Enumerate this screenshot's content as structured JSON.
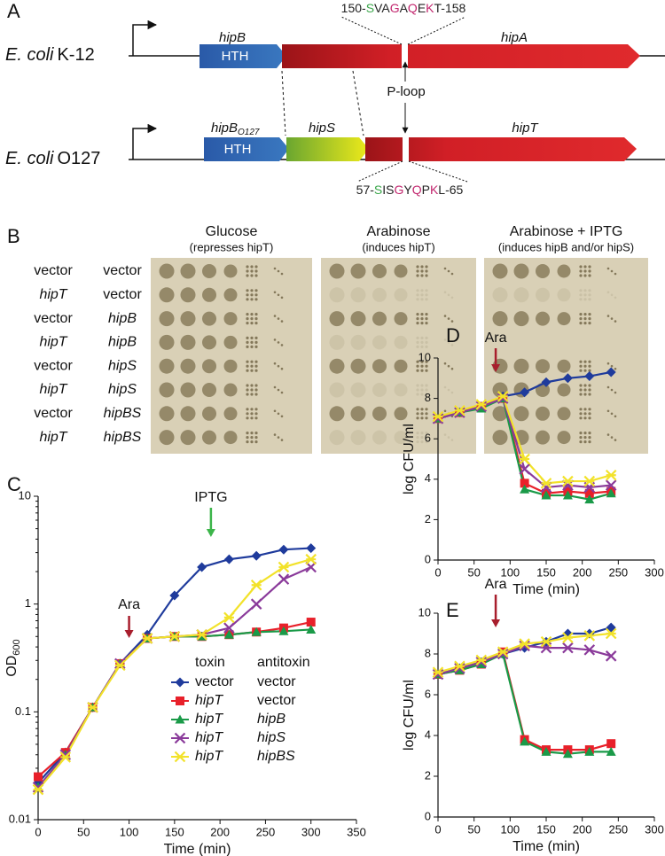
{
  "panel_a": {
    "label": "A",
    "k12": {
      "organism": "E. coli",
      "strain": "K-12",
      "gene_b": "hipB",
      "gene_a": "hipA",
      "domain": "HTH",
      "motif": [
        {
          "text": "150-",
          "color": "#222222"
        },
        {
          "text": "S",
          "color": "#3aa64a"
        },
        {
          "text": "VA",
          "color": "#222222"
        },
        {
          "text": "G",
          "color": "#c2266e"
        },
        {
          "text": "A",
          "color": "#222222"
        },
        {
          "text": "Q",
          "color": "#c2266e"
        },
        {
          "text": "E",
          "color": "#222222"
        },
        {
          "text": "K",
          "color": "#c2266e"
        },
        {
          "text": "T-158",
          "color": "#222222"
        }
      ]
    },
    "o127": {
      "organism": "E. coli",
      "strain": "O127",
      "gene_b": "hipB",
      "gene_b_sub": "O127",
      "gene_s": "hipS",
      "gene_t": "hipT",
      "domain": "HTH",
      "motif": [
        {
          "text": "57-",
          "color": "#222222"
        },
        {
          "text": "S",
          "color": "#3aa64a"
        },
        {
          "text": "IS",
          "color": "#222222"
        },
        {
          "text": "G",
          "color": "#c2266e"
        },
        {
          "text": "Y",
          "color": "#222222"
        },
        {
          "text": "Q",
          "color": "#c2266e"
        },
        {
          "text": "P",
          "color": "#222222"
        },
        {
          "text": "K",
          "color": "#c2266e"
        },
        {
          "text": "L-65",
          "color": "#222222"
        }
      ]
    },
    "loop_label": "P-loop"
  },
  "panel_b": {
    "label": "B",
    "plates": [
      {
        "title": "Glucose",
        "subtitle": "(represses hipT)"
      },
      {
        "title": "Arabinose",
        "subtitle": "(induces hipT)"
      },
      {
        "title": "Arabinose + IPTG",
        "subtitle": "(induces hipB and/or hipS)"
      }
    ],
    "toxin": [
      "vector",
      "hipT",
      "vector",
      "hipT",
      "vector",
      "hipT",
      "vector",
      "hipT"
    ],
    "antitoxin": [
      "vector",
      "vector",
      "hipB",
      "hipB",
      "hipS",
      "hipS",
      "hipBS",
      "hipBS"
    ]
  },
  "chart_data": [
    {
      "type": "line",
      "panel_label": "C",
      "log_y": true,
      "x": [
        0,
        30,
        60,
        90,
        120,
        150,
        180,
        210,
        240,
        270,
        300
      ],
      "xlim": [
        0,
        350
      ],
      "xticks": [
        0,
        50,
        100,
        150,
        200,
        250,
        300,
        350
      ],
      "ylim": [
        0.01,
        10
      ],
      "yticks": [
        0.01,
        0.1,
        1,
        10
      ],
      "x_label": "Time (min)",
      "y_label": "OD",
      "y_label_sub": "600",
      "legend_headers": [
        "toxin",
        "antitoxin"
      ],
      "series": [
        {
          "name": "vector",
          "antitoxin": "vector",
          "color": "#1f3b9c",
          "marker": "diamond",
          "values": [
            0.022,
            0.042,
            0.11,
            0.28,
            0.52,
            1.2,
            2.2,
            2.6,
            2.8,
            3.2,
            3.3
          ]
        },
        {
          "name": "hipT",
          "antitoxin": "vector",
          "color": "#e8202a",
          "marker": "square",
          "values": [
            0.025,
            0.042,
            0.11,
            0.28,
            0.48,
            0.5,
            0.5,
            0.52,
            0.55,
            0.6,
            0.68
          ]
        },
        {
          "name": "hipT",
          "antitoxin": "hipB",
          "color": "#1a9a48",
          "marker": "triangle",
          "values": [
            0.02,
            0.04,
            0.11,
            0.28,
            0.48,
            0.5,
            0.5,
            0.52,
            0.55,
            0.56,
            0.58
          ]
        },
        {
          "name": "hipT",
          "antitoxin": "hipS",
          "color": "#8a3a9a",
          "marker": "cross",
          "values": [
            0.02,
            0.04,
            0.11,
            0.28,
            0.48,
            0.5,
            0.52,
            0.6,
            1.0,
            1.7,
            2.2
          ]
        },
        {
          "name": "hipT",
          "antitoxin": "hipBS",
          "color": "#f2e22a",
          "marker": "star",
          "values": [
            0.019,
            0.038,
            0.11,
            0.27,
            0.48,
            0.5,
            0.52,
            0.75,
            1.5,
            2.2,
            2.6
          ]
        }
      ],
      "annotations": [
        {
          "text": "Ara",
          "x": 100,
          "color": "#a81e2d"
        },
        {
          "text": "IPTG",
          "x": 190,
          "color": "#3cb54a"
        }
      ]
    },
    {
      "type": "line",
      "panel_label": "D",
      "x": [
        0,
        30,
        60,
        90,
        120,
        150,
        180,
        210,
        240
      ],
      "xlim": [
        0,
        300
      ],
      "xticks": [
        0,
        50,
        100,
        150,
        200,
        250,
        300
      ],
      "ylim": [
        0,
        10
      ],
      "yticks": [
        0,
        2,
        4,
        6,
        8,
        10
      ],
      "x_label": "Time (min)",
      "y_label": "log CFU/ml",
      "series": [
        {
          "color": "#1f3b9c",
          "marker": "diamond",
          "values": [
            7.0,
            7.3,
            7.6,
            8.1,
            8.3,
            8.8,
            9.0,
            9.1,
            9.3
          ]
        },
        {
          "color": "#e8202a",
          "marker": "square",
          "values": [
            7.0,
            7.3,
            7.6,
            8.0,
            3.8,
            3.3,
            3.4,
            3.3,
            3.4
          ]
        },
        {
          "color": "#1a9a48",
          "marker": "triangle",
          "values": [
            7.0,
            7.3,
            7.5,
            8.0,
            3.5,
            3.2,
            3.2,
            3.0,
            3.3
          ]
        },
        {
          "color": "#8a3a9a",
          "marker": "cross",
          "values": [
            7.0,
            7.3,
            7.6,
            8.0,
            4.5,
            3.6,
            3.7,
            3.6,
            3.7
          ]
        },
        {
          "color": "#f2e22a",
          "marker": "star",
          "values": [
            7.1,
            7.4,
            7.7,
            8.1,
            5.0,
            3.8,
            3.9,
            3.9,
            4.2
          ]
        }
      ],
      "annotations": [
        {
          "text": "Ara",
          "x": 80,
          "color": "#a81e2d"
        }
      ]
    },
    {
      "type": "line",
      "panel_label": "E",
      "x": [
        0,
        30,
        60,
        90,
        120,
        150,
        180,
        210,
        240
      ],
      "xlim": [
        0,
        300
      ],
      "xticks": [
        0,
        50,
        100,
        150,
        200,
        250,
        300
      ],
      "ylim": [
        0,
        10
      ],
      "yticks": [
        0,
        2,
        4,
        6,
        8,
        10
      ],
      "x_label": "Time (min)",
      "y_label": "log CFU/ml",
      "series": [
        {
          "color": "#1f3b9c",
          "marker": "diamond",
          "values": [
            7.0,
            7.3,
            7.6,
            8.0,
            8.3,
            8.6,
            9.0,
            9.0,
            9.3
          ]
        },
        {
          "color": "#e8202a",
          "marker": "square",
          "values": [
            7.0,
            7.2,
            7.5,
            8.1,
            3.8,
            3.3,
            3.3,
            3.3,
            3.6
          ]
        },
        {
          "color": "#1a9a48",
          "marker": "triangle",
          "values": [
            7.0,
            7.2,
            7.5,
            8.0,
            3.7,
            3.2,
            3.1,
            3.2,
            3.2
          ]
        },
        {
          "color": "#8a3a9a",
          "marker": "cross",
          "values": [
            7.0,
            7.3,
            7.6,
            8.0,
            8.4,
            8.3,
            8.3,
            8.2,
            7.9
          ]
        },
        {
          "color": "#f2e22a",
          "marker": "star",
          "values": [
            7.1,
            7.4,
            7.7,
            8.1,
            8.5,
            8.6,
            8.8,
            8.9,
            9.0
          ]
        }
      ],
      "annotations": [
        {
          "text": "Ara",
          "x": 80,
          "color": "#a81e2d"
        }
      ]
    }
  ]
}
